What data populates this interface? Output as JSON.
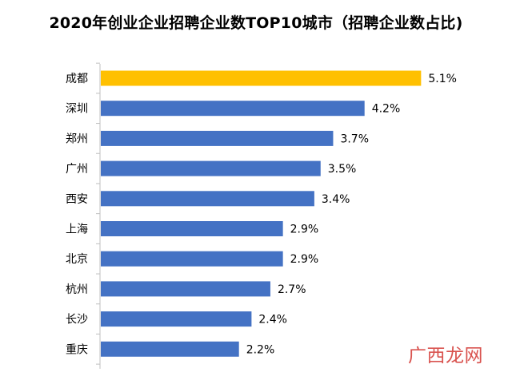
{
  "chart_data": {
    "type": "bar",
    "orientation": "horizontal",
    "title": "2020年创业企业招聘企业数TOP10城市（招聘企业数占比)",
    "categories": [
      "成都",
      "深圳",
      "郑州",
      "广州",
      "西安",
      "上海",
      "北京",
      "杭州",
      "长沙",
      "重庆"
    ],
    "values": [
      5.1,
      4.2,
      3.7,
      3.5,
      3.4,
      2.9,
      2.9,
      2.7,
      2.4,
      2.2
    ],
    "value_labels": [
      "5.1%",
      "4.2%",
      "3.7%",
      "3.5%",
      "3.4%",
      "2.9%",
      "2.9%",
      "2.7%",
      "2.4%",
      "2.2%"
    ],
    "unit": "%",
    "highlight_index": 0,
    "colors": {
      "bar": "#4472C4",
      "highlight": "#FFC000",
      "axis": "#BFBFBF",
      "text": "#000000"
    },
    "grid": false,
    "legend": "none"
  },
  "watermark": {
    "text": "广西龙网",
    "color": "#d9534f"
  }
}
